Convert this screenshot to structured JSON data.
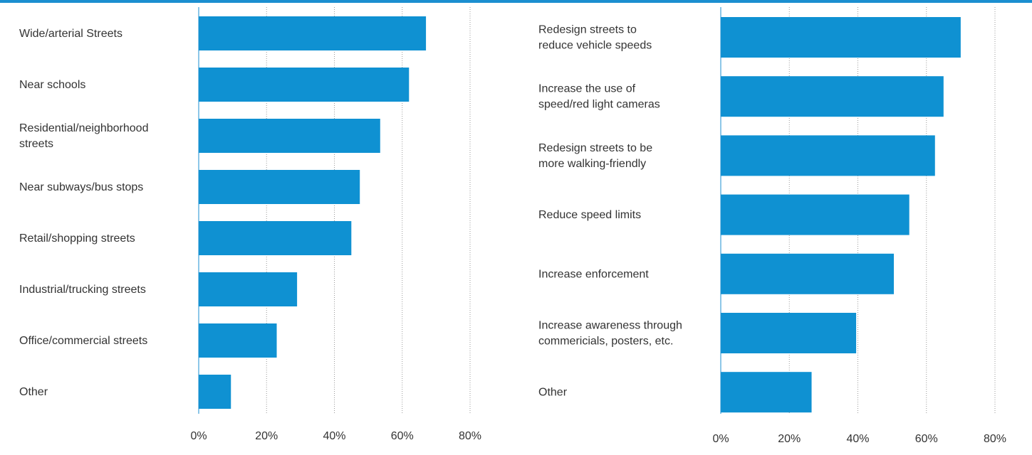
{
  "colors": {
    "bar": "#0f91d2",
    "accent_rule": "#1b8fd0",
    "text": "#333333",
    "grid": "#9a9a9a"
  },
  "chart_data": [
    {
      "type": "bar",
      "orientation": "horizontal",
      "categories": [
        [
          "Wide/arterial Streets"
        ],
        [
          "Near schools"
        ],
        [
          "Residential/neighborhood",
          "streets"
        ],
        [
          "Near subways/bus stops"
        ],
        [
          "Retail/shopping streets"
        ],
        [
          "Industrial/trucking streets"
        ],
        [
          "Office/commercial streets"
        ],
        [
          "Other"
        ]
      ],
      "values": [
        67,
        62,
        53.5,
        47.5,
        45,
        29,
        23,
        9.5
      ],
      "xlim": [
        0,
        80
      ],
      "ticks": [
        "0%",
        "20%",
        "40%",
        "60%",
        "80%"
      ],
      "grid": true
    },
    {
      "type": "bar",
      "orientation": "horizontal",
      "categories": [
        [
          "Redesign streets to",
          "reduce vehicle speeds"
        ],
        [
          "Increase the use of",
          "speed/red light cameras"
        ],
        [
          "Redesign streets to be",
          "more walking-friendly"
        ],
        [
          "Reduce speed limits"
        ],
        [
          "Increase enforcement"
        ],
        [
          "Increase awareness through",
          "commericials, posters, etc."
        ],
        [
          "Other"
        ]
      ],
      "values": [
        70,
        65,
        62.5,
        55,
        50.5,
        39.5,
        26.5
      ],
      "xlim": [
        0,
        80
      ],
      "ticks": [
        "0%",
        "20%",
        "40%",
        "60%",
        "80%"
      ],
      "grid": true
    }
  ]
}
